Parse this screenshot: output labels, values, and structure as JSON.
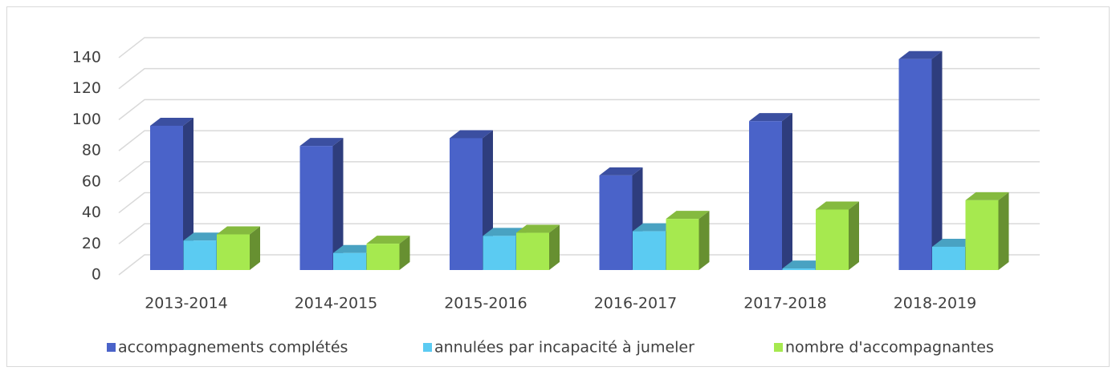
{
  "chart_data": {
    "type": "bar3d",
    "categories": [
      "2013-2014",
      "2014-2015",
      "2015-2016",
      "2016-2017",
      "2017-2018",
      "2018-2019"
    ],
    "series": [
      {
        "name": "accompagnements complétés",
        "color": "#4a63c9",
        "values": [
          93,
          80,
          85,
          61,
          96,
          136
        ]
      },
      {
        "name": "annulées par incapacité à jumeler",
        "color": "#5bcbf2",
        "values": [
          19,
          11,
          22,
          25,
          1,
          15
        ]
      },
      {
        "name": "nombre d'accompagnantes",
        "color": "#a6e94f",
        "values": [
          23,
          17,
          24,
          33,
          39,
          45
        ]
      }
    ],
    "ylim": [
      0,
      140
    ],
    "yticks": [
      0,
      20,
      40,
      60,
      80,
      100,
      120,
      140
    ],
    "grid": true,
    "legend": "bottom"
  }
}
